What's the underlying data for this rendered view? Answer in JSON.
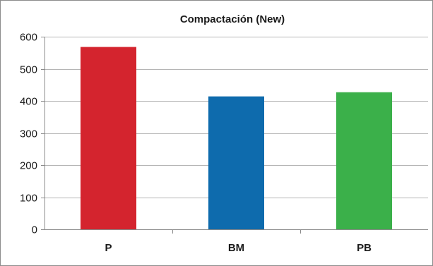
{
  "chart_data": {
    "type": "bar",
    "title": "Compactación (New)",
    "xlabel": "",
    "ylabel": "",
    "categories": [
      "P",
      "BM",
      "PB"
    ],
    "values": [
      568,
      414,
      427
    ],
    "colors": [
      "#d4242e",
      "#0e6bad",
      "#3bb04a"
    ],
    "ylim": [
      0,
      600
    ],
    "yticks": [
      0,
      100,
      200,
      300,
      400,
      500,
      600
    ],
    "grid": true,
    "legend": "none"
  }
}
